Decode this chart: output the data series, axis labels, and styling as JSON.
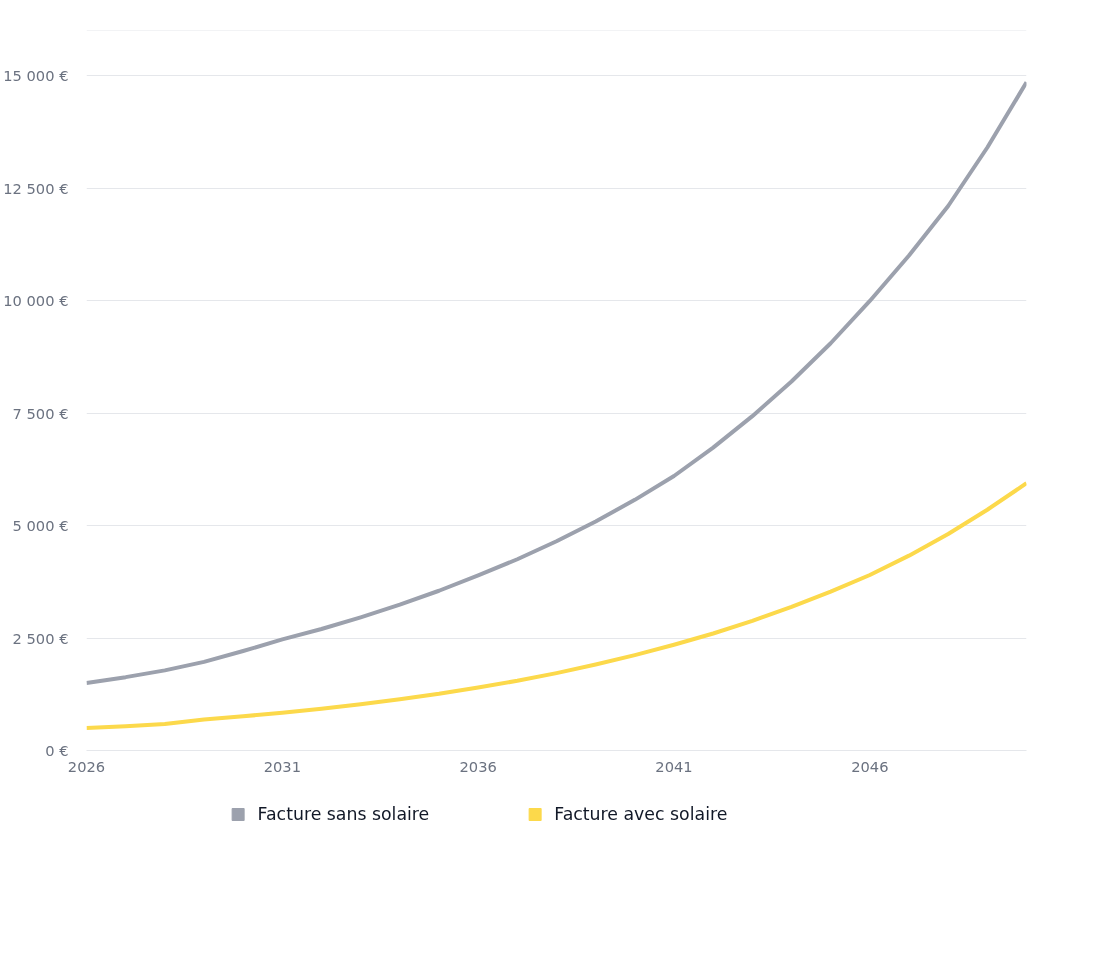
{
  "chart_data": {
    "type": "line",
    "x": [
      2026,
      2027,
      2028,
      2029,
      2030,
      2031,
      2032,
      2033,
      2034,
      2035,
      2036,
      2037,
      2038,
      2039,
      2040,
      2041,
      2042,
      2043,
      2044,
      2045,
      2046,
      2047,
      2048,
      2049,
      2050
    ],
    "series": [
      {
        "name": "Facture sans solaire",
        "color": "#9ca1ad",
        "values": [
          1500,
          1630,
          1780,
          1970,
          2210,
          2470,
          2700,
          2960,
          3240,
          3550,
          3890,
          4250,
          4650,
          5090,
          5570,
          6100,
          6730,
          7430,
          8200,
          9050,
          9990,
          11000,
          12100,
          13400,
          14850
        ]
      },
      {
        "name": "Facture avec solaire",
        "color": "#fcd94b",
        "values": [
          500,
          540,
          590,
          690,
          760,
          840,
          930,
          1030,
          1140,
          1260,
          1400,
          1550,
          1720,
          1910,
          2120,
          2350,
          2600,
          2880,
          3190,
          3530,
          3900,
          4330,
          4810,
          5350,
          5940
        ]
      }
    ],
    "xlim": [
      2026,
      2050
    ],
    "ylim": [
      0,
      16000
    ],
    "xticks": [
      2026,
      2031,
      2036,
      2041,
      2046
    ],
    "yticks": [
      {
        "value": 0,
        "label": "0 €"
      },
      {
        "value": 2500,
        "label": "2 500 €"
      },
      {
        "value": 5000,
        "label": "5 000 €"
      },
      {
        "value": 7500,
        "label": "7 500 €"
      },
      {
        "value": 10000,
        "label": "10 000 €"
      },
      {
        "value": 12500,
        "label": "12 500 €"
      },
      {
        "value": 15000,
        "label": "15 000 €"
      },
      {
        "value": 16000,
        "label": null
      }
    ],
    "grid": "y",
    "legend": "bottom",
    "marker": "none",
    "line_style": "solid"
  }
}
